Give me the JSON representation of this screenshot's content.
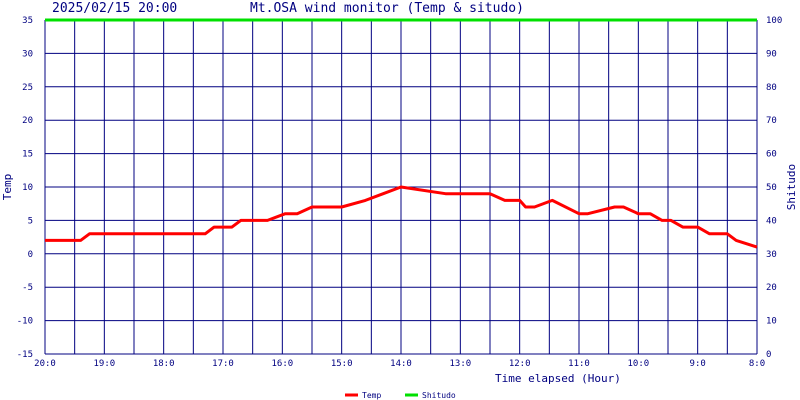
{
  "header": {
    "datetime": "2025/02/15 20:00",
    "title": "Mt.OSA wind monitor (Temp & situdo)"
  },
  "chart_data": {
    "type": "line",
    "xlabel": "Time elapsed (Hour)",
    "ylabel_left": "Temp",
    "ylabel_right": "Shitudo",
    "ylim_left": [
      -15,
      35
    ],
    "ylim_right": [
      0,
      100
    ],
    "yticks_left": [
      "35",
      "30",
      "25",
      "20",
      "15",
      "10",
      "5",
      "0",
      "-5",
      "-10",
      "-15"
    ],
    "yticks_right": [
      "100",
      "90",
      "80",
      "70",
      "60",
      "50",
      "40",
      "30",
      "20",
      "10",
      "0"
    ],
    "xticks": [
      {
        "label": "20:0",
        "hours_ago": 0
      },
      {
        "label": "19:0",
        "hours_ago": 1
      },
      {
        "label": "18:0",
        "hours_ago": 2
      },
      {
        "label": "17:0",
        "hours_ago": 3
      },
      {
        "label": "16:0",
        "hours_ago": 4
      },
      {
        "label": "15:0",
        "hours_ago": 5
      },
      {
        "label": "14:0",
        "hours_ago": 6
      },
      {
        "label": "13:0",
        "hours_ago": 7
      },
      {
        "label": "12:0",
        "hours_ago": 8
      },
      {
        "label": "11:0",
        "hours_ago": 9
      },
      {
        "label": "10:0",
        "hours_ago": 10
      },
      {
        "label": "9:0",
        "hours_ago": 11
      },
      {
        "label": "8:0",
        "hours_ago": 12
      }
    ],
    "grid": true,
    "legend_position": "bottom-center",
    "series": [
      {
        "name": "Temp",
        "axis": "left",
        "color": "#ff0000",
        "hours_ago": [
          0,
          0.6,
          0.75,
          2.7,
          2.85,
          3.15,
          3.3,
          3.75,
          4.05,
          4.25,
          4.5,
          5.0,
          5.4,
          5.7,
          6.0,
          6.75,
          7.0,
          7.5,
          7.75,
          8.0,
          8.1,
          8.25,
          8.55,
          9.0,
          9.15,
          9.6,
          9.75,
          10.0,
          10.2,
          10.4,
          10.55,
          10.75,
          11.0,
          11.2,
          11.5,
          11.65,
          12.0
        ],
        "values": [
          2,
          2,
          3,
          3,
          4,
          4,
          5,
          5,
          6,
          6,
          7,
          7,
          8,
          9,
          10,
          9,
          9,
          9,
          8,
          8,
          7,
          7,
          8,
          6,
          6,
          7,
          7,
          6,
          6,
          5,
          5,
          4,
          4,
          3,
          3,
          2,
          1
        ]
      },
      {
        "name": "Shitudo",
        "axis": "right",
        "color": "#00e000",
        "hours_ago": [
          0,
          12
        ],
        "values": [
          100,
          100
        ]
      }
    ]
  }
}
